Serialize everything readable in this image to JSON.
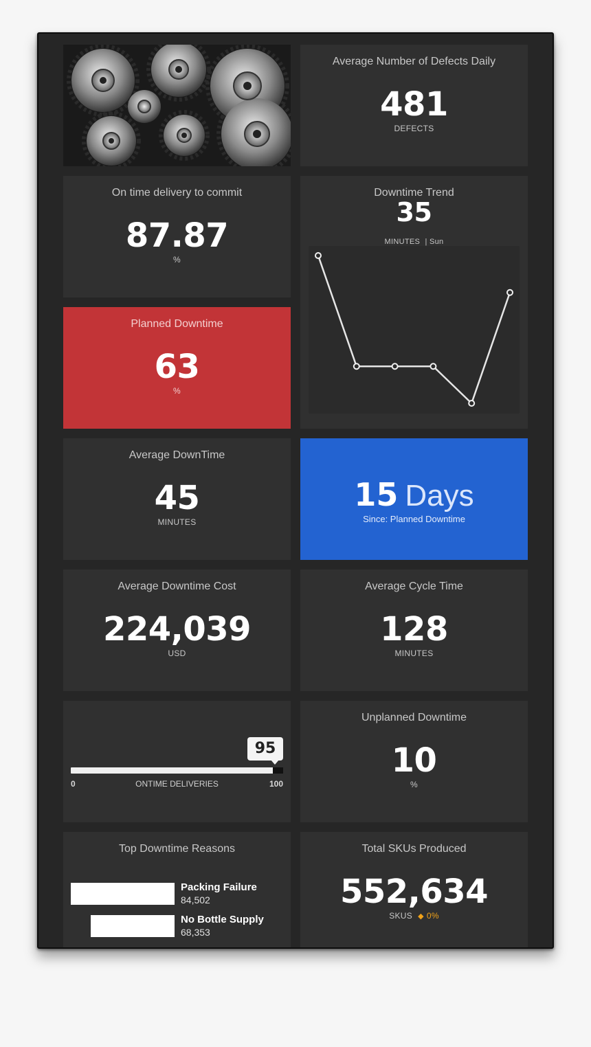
{
  "defects": {
    "title": "Average Number of Defects Daily",
    "value": "481",
    "unit": "DEFECTS"
  },
  "ontime": {
    "title": "On time delivery to commit",
    "value": "87.87",
    "unit": "%"
  },
  "trend": {
    "title": "Downtime Trend",
    "value": "35",
    "unit": "MINUTES",
    "day": "| Sun"
  },
  "planned": {
    "title": "Planned Downtime",
    "value": "63",
    "unit": "%",
    "color": "#c23437"
  },
  "avg_downtime": {
    "title": "Average DownTime",
    "value": "45",
    "unit": "MINUTES"
  },
  "since": {
    "number": "15",
    "word": "Days",
    "caption": "Since: Planned Downtime",
    "color": "#2363d1"
  },
  "cost": {
    "title": "Average Downtime Cost",
    "value": "224,039",
    "unit": "USD"
  },
  "cycle": {
    "title": "Average Cycle Time",
    "value": "128",
    "unit": "MINUTES"
  },
  "slider": {
    "value": "95",
    "min": "0",
    "max": "100",
    "label": "ONTIME DELIVERIES",
    "fraction": 0.95
  },
  "unplanned": {
    "title": "Unplanned Downtime",
    "value": "10",
    "unit": "%"
  },
  "reasons": {
    "title": "Top Downtime Reasons",
    "items": [
      {
        "name": "Packing Failure",
        "value": "84,502",
        "amount": 84502
      },
      {
        "name": "No Bottle Supply",
        "value": "68,353",
        "amount": 68353
      }
    ]
  },
  "skus": {
    "title": "Total SKUs Produced",
    "value": "552,634",
    "unit": "SKUS",
    "change": "0%",
    "change_icon": "diamond-icon",
    "change_color": "#f0a21a"
  },
  "image": {
    "icon": "gears-photo"
  },
  "chart_data": {
    "type": "line",
    "series": [
      {
        "values": [
          100,
          40,
          40,
          40,
          20,
          80
        ]
      }
    ],
    "grid": false,
    "legend": "none"
  }
}
